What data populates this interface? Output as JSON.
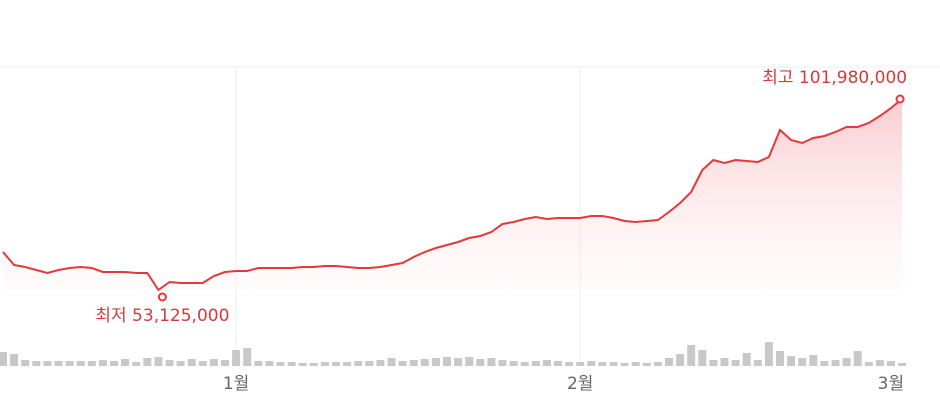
{
  "chart_data": {
    "type": "line",
    "categories": [
      null,
      null,
      null,
      null,
      null,
      null,
      null,
      null,
      null,
      null,
      null,
      null,
      null,
      null,
      null,
      null,
      null,
      null,
      null,
      null,
      null,
      "1월",
      null,
      null,
      null,
      null,
      null,
      null,
      null,
      null,
      null,
      null,
      null,
      null,
      null,
      null,
      null,
      null,
      null,
      null,
      null,
      null,
      null,
      null,
      null,
      null,
      null,
      null,
      null,
      null,
      null,
      null,
      "2월",
      null,
      null,
      null,
      null,
      null,
      null,
      null,
      null,
      null,
      null,
      null,
      null,
      null,
      null,
      null,
      null,
      null,
      null,
      null,
      null,
      null,
      null,
      null,
      null,
      null,
      null,
      null,
      null,
      "3월"
    ],
    "series": [
      {
        "color": "#e5383b",
        "values": [
          62840000,
          59520000,
          59010000,
          58240000,
          57470000,
          58240000,
          58750000,
          59010000,
          58750000,
          57730000,
          57730000,
          57730000,
          57470000,
          57470000,
          53125000,
          55170000,
          54910000,
          54910000,
          54910000,
          56700000,
          57730000,
          57980000,
          57980000,
          58750000,
          58750000,
          58750000,
          58750000,
          59010000,
          59010000,
          59260000,
          59260000,
          59010000,
          58750000,
          58750000,
          59010000,
          59520000,
          60030000,
          61560000,
          62840000,
          63870000,
          64630000,
          65400000,
          66420000,
          66940000,
          67960000,
          70000000,
          70520000,
          71280000,
          71800000,
          71280000,
          71540000,
          71540000,
          71540000,
          72050000,
          72050000,
          71540000,
          70770000,
          70520000,
          70770000,
          71030000,
          73070000,
          75380000,
          78190000,
          83820000,
          86380000,
          85610000,
          86380000,
          86120000,
          85860000,
          87140000,
          94050000,
          91490000,
          90720000,
          92000000,
          92520000,
          93540000,
          94820000,
          94820000,
          95840000,
          97630000,
          99680000,
          101980000
        ]
      }
    ],
    "volume_values": [
      14,
      12,
      6,
      5,
      5,
      5,
      5,
      5,
      5,
      6,
      5,
      7,
      4,
      8,
      9,
      6,
      5,
      7,
      5,
      7,
      6,
      16,
      18,
      5,
      5,
      4,
      4,
      3,
      3,
      4,
      4,
      4,
      5,
      5,
      6,
      8,
      5,
      6,
      7,
      8,
      9,
      8,
      9,
      7,
      8,
      6,
      5,
      4,
      5,
      6,
      5,
      4,
      4,
      5,
      4,
      4,
      3,
      4,
      3,
      4,
      8,
      12,
      21,
      16,
      6,
      8,
      6,
      13,
      6,
      24,
      15,
      10,
      8,
      11,
      5,
      6,
      8,
      15,
      4,
      6,
      5,
      3
    ],
    "volume_color": "#c8c8c8",
    "high_label": "최고 101,980,000",
    "low_label": "최저 53,125,000",
    "grid": true
  }
}
